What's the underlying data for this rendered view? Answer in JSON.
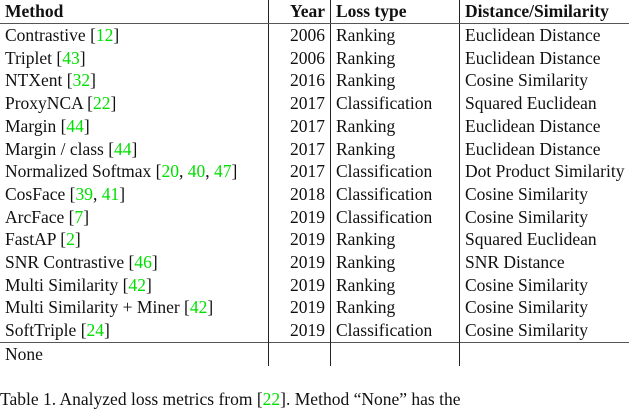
{
  "table": {
    "headers": [
      "Method",
      "Year",
      "Loss type",
      "Distance/Similarity"
    ],
    "rows": [
      {
        "method": "Contrastive",
        "cites": [
          "12"
        ],
        "year": "2006",
        "loss": "Ranking",
        "dist": "Euclidean Distance"
      },
      {
        "method": "Triplet",
        "cites": [
          "43"
        ],
        "year": "2006",
        "loss": "Ranking",
        "dist": "Euclidean Distance"
      },
      {
        "method": "NTXent",
        "cites": [
          "32"
        ],
        "year": "2016",
        "loss": "Ranking",
        "dist": "Cosine Similarity"
      },
      {
        "method": "ProxyNCA",
        "cites": [
          "22"
        ],
        "year": "2017",
        "loss": "Classification",
        "dist": "Squared Euclidean"
      },
      {
        "method": "Margin",
        "cites": [
          "44"
        ],
        "year": "2017",
        "loss": "Ranking",
        "dist": "Euclidean Distance"
      },
      {
        "method": "Margin / class",
        "cites": [
          "44"
        ],
        "year": "2017",
        "loss": "Ranking",
        "dist": "Euclidean Distance"
      },
      {
        "method": "Normalized Softmax",
        "cites": [
          "20",
          "40",
          "47"
        ],
        "year": "2017",
        "loss": "Classification",
        "dist": "Dot Product Similarity"
      },
      {
        "method": "CosFace",
        "cites": [
          "39",
          "41"
        ],
        "year": "2018",
        "loss": "Classification",
        "dist": "Cosine Similarity"
      },
      {
        "method": "ArcFace",
        "cites": [
          "7"
        ],
        "year": "2019",
        "loss": "Classification",
        "dist": "Cosine Similarity"
      },
      {
        "method": "FastAP",
        "cites": [
          "2"
        ],
        "year": "2019",
        "loss": "Ranking",
        "dist": "Squared Euclidean"
      },
      {
        "method": "SNR Contrastive",
        "cites": [
          "46"
        ],
        "year": "2019",
        "loss": "Ranking",
        "dist": "SNR Distance"
      },
      {
        "method": "Multi Similarity",
        "cites": [
          "42"
        ],
        "year": "2019",
        "loss": "Ranking",
        "dist": "Cosine Similarity"
      },
      {
        "method": "Multi Similarity + Miner",
        "cites": [
          "42"
        ],
        "year": "2019",
        "loss": "Ranking",
        "dist": "Cosine Similarity"
      },
      {
        "method": "SoftTriple",
        "cites": [
          "24"
        ],
        "year": "2019",
        "loss": "Classification",
        "dist": "Cosine Similarity"
      }
    ],
    "last_row": {
      "method": "None",
      "year": "",
      "loss": "",
      "dist": ""
    }
  },
  "caption": {
    "prefix": "Table 1. Analyzed loss metrics from [",
    "cite": "22",
    "suffix": "]. Method “None” has the"
  },
  "colors": {
    "citation": "#00e000"
  }
}
